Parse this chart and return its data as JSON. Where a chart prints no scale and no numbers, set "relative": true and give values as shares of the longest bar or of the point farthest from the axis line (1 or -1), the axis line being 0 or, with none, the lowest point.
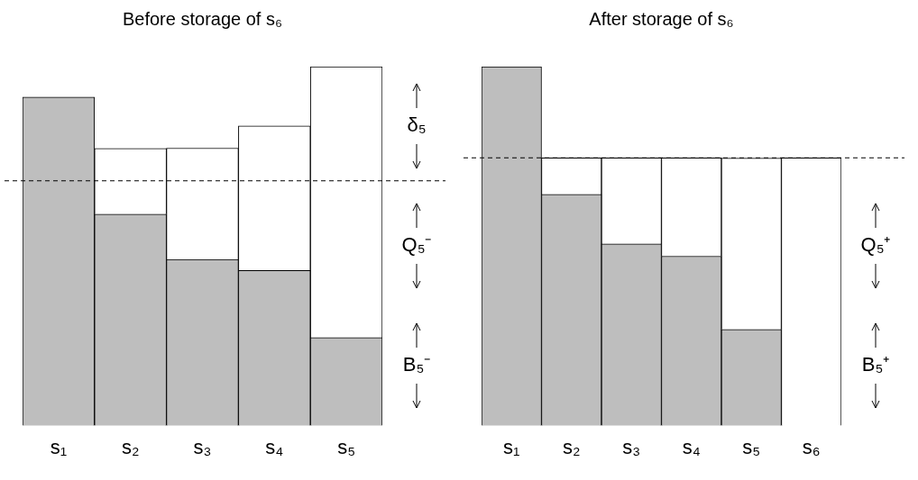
{
  "chart_data": [
    {
      "type": "bar",
      "title": "Before storage of s₆",
      "categories": [
        "s₁",
        "s₂",
        "s₃",
        "s₄",
        "s₅"
      ],
      "stacked": true,
      "relative": true,
      "legend": false,
      "grid": false,
      "tick_labels": "x",
      "series": [
        {
          "color": "#bebebe",
          "values": [
            0.915,
            0.589,
            0.463,
            0.432,
            0.245
          ]
        },
        {
          "color": "#ffffff",
          "values": [
            0,
            0.183,
            0.31,
            0.403,
            0.755
          ]
        }
      ],
      "ref_lines": [
        {
          "axis": "y",
          "value": 0.682,
          "line_style": "dashed"
        }
      ],
      "annotations": [
        "δ₅",
        "Q₅⁻",
        "B₅⁻"
      ]
    },
    {
      "type": "bar",
      "title": "After storage of s₆",
      "categories": [
        "s₁",
        "s₂",
        "s₃",
        "s₄",
        "s₅",
        "s₆"
      ],
      "stacked": true,
      "relative": true,
      "legend": false,
      "grid": false,
      "tick_labels": "x",
      "series": [
        {
          "color": "#bebebe",
          "values": [
            1,
            0.644,
            0.506,
            0.472,
            0.268,
            0
          ]
        },
        {
          "color": "#ffffff",
          "values": [
            0,
            0.102,
            0.24,
            0.274,
            0.477,
            0.746
          ]
        }
      ],
      "ref_lines": [
        {
          "axis": "y",
          "value": 0.746,
          "line_style": "dashed"
        }
      ],
      "annotations": [
        "Q₅⁺",
        "B₅⁺"
      ]
    }
  ]
}
